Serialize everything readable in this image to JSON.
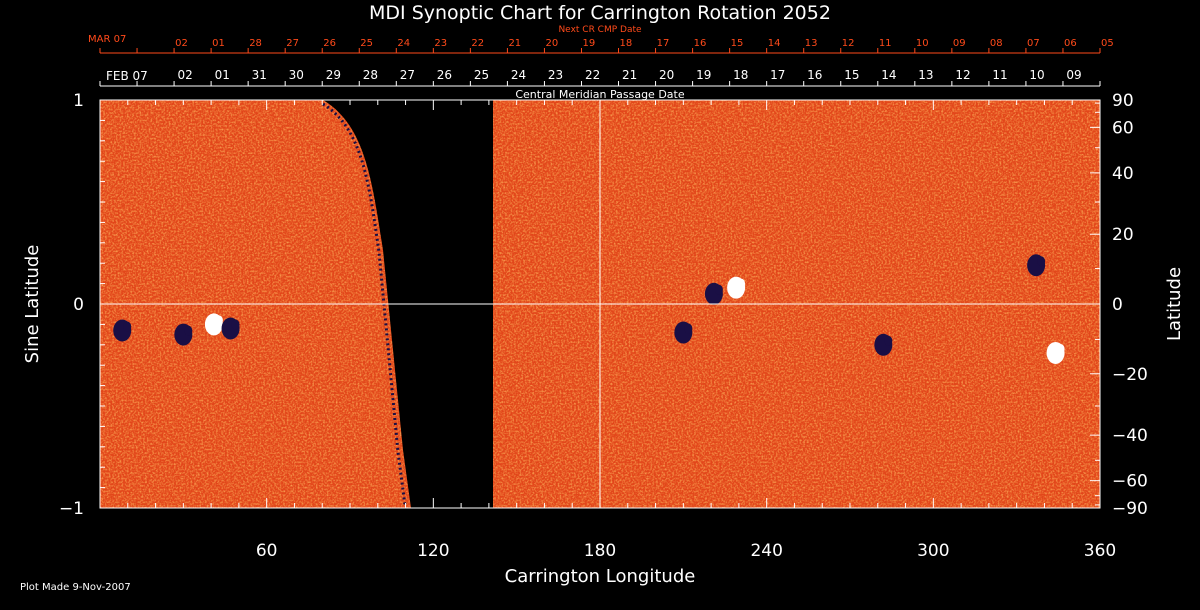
{
  "chart_data": {
    "type": "heatmap",
    "title": "MDI Synoptic Chart for Carrington Rotation 2052",
    "xlabel": "Carrington Longitude",
    "ylabel_left": "Sine Latitude",
    "ylabel_right": "Latitude",
    "xlim": [
      0,
      360
    ],
    "ylim": [
      -1,
      1
    ],
    "x_ticks": [
      60,
      120,
      180,
      240,
      300,
      360
    ],
    "y_ticks_left": [
      {
        "v": -1,
        "label": "−1"
      },
      {
        "v": 0,
        "label": "0"
      },
      {
        "v": 1,
        "label": "1"
      }
    ],
    "y_ticks_right": [
      {
        "deg": -90,
        "label": "−90"
      },
      {
        "deg": -60,
        "label": "−60"
      },
      {
        "deg": -40,
        "label": "−40"
      },
      {
        "deg": -20,
        "label": "−20"
      },
      {
        "deg": 0,
        "label": "0"
      },
      {
        "deg": 20,
        "label": "20"
      },
      {
        "deg": 40,
        "label": "40"
      },
      {
        "deg": 60,
        "label": "60"
      },
      {
        "deg": 90,
        "label": "90"
      }
    ],
    "cmp_axis": {
      "label": "Central Meridian Passage Date",
      "start_label": "FEB 07",
      "dates": [
        "02",
        "01",
        "31",
        "30",
        "29",
        "28",
        "27",
        "26",
        "25",
        "24",
        "23",
        "22",
        "21",
        "20",
        "19",
        "18",
        "17",
        "16",
        "15",
        "14",
        "13",
        "12",
        "11",
        "10",
        "09"
      ]
    },
    "next_cmp_axis": {
      "label": "Next CR CMP Date",
      "start_label": "MAR 07",
      "dates": [
        "02",
        "01",
        "28",
        "27",
        "26",
        "25",
        "24",
        "23",
        "22",
        "21",
        "20",
        "19",
        "18",
        "17",
        "16",
        "15",
        "14",
        "13",
        "12",
        "11",
        "10",
        "09",
        "08",
        "07",
        "06",
        "05"
      ]
    },
    "data_gap": {
      "x_from": 111,
      "x_to": 142
    },
    "active_regions": [
      {
        "lon": 8,
        "sinlat": -0.13,
        "polarity": "negative"
      },
      {
        "lon": 30,
        "sinlat": -0.15,
        "polarity": "negative"
      },
      {
        "lon": 41,
        "sinlat": -0.1,
        "polarity": "positive"
      },
      {
        "lon": 47,
        "sinlat": -0.12,
        "polarity": "negative"
      },
      {
        "lon": 210,
        "sinlat": -0.14,
        "polarity": "negative"
      },
      {
        "lon": 221,
        "sinlat": 0.05,
        "polarity": "negative"
      },
      {
        "lon": 229,
        "sinlat": 0.08,
        "polarity": "positive"
      },
      {
        "lon": 282,
        "sinlat": -0.2,
        "polarity": "negative"
      },
      {
        "lon": 337,
        "sinlat": 0.19,
        "polarity": "negative"
      },
      {
        "lon": 344,
        "sinlat": -0.24,
        "polarity": "positive"
      }
    ],
    "colors": {
      "background": "#000000",
      "map_base": "#e2461a",
      "positive": "#ffffff",
      "negative": "#1a0f45",
      "grid": "#ffffff",
      "top_axis": "#ff4a1a"
    }
  },
  "footer": {
    "plot_made": "Plot Made  9-Nov-2007"
  }
}
